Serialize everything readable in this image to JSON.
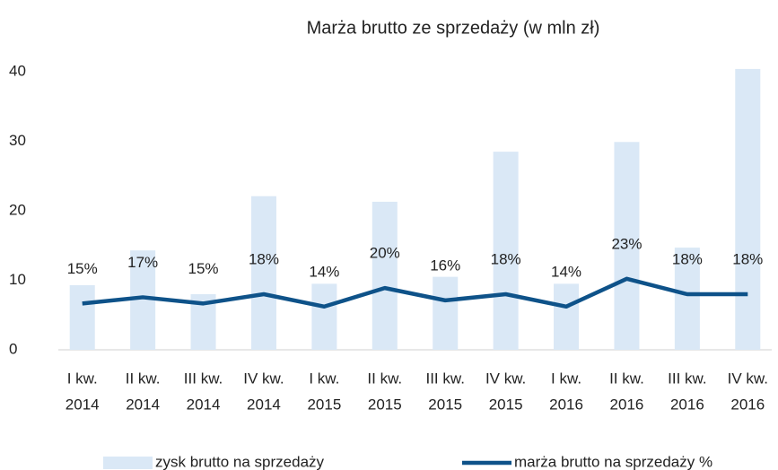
{
  "chart_data": {
    "type": "bar-line",
    "title": "Marża brutto ze sprzedaży (w mln zł)",
    "categories": [
      [
        "I kw.",
        "2014"
      ],
      [
        "II kw.",
        "2014"
      ],
      [
        "III kw.",
        "2014"
      ],
      [
        "IV kw.",
        "2014"
      ],
      [
        "I kw.",
        "2015"
      ],
      [
        "II kw.",
        "2015"
      ],
      [
        "III kw.",
        "2015"
      ],
      [
        "IV kw.",
        "2015"
      ],
      [
        "I kw.",
        "2016"
      ],
      [
        "II kw.",
        "2016"
      ],
      [
        "III kw.",
        "2016"
      ],
      [
        "IV kw.",
        "2016"
      ]
    ],
    "series": [
      {
        "name": "zysk brutto na sprzedaży",
        "type": "bar",
        "color": "#dae8f6",
        "values": [
          9.3,
          14.3,
          8.0,
          22.1,
          9.5,
          21.3,
          10.5,
          28.5,
          9.5,
          29.9,
          14.7,
          40.4
        ]
      },
      {
        "name": "marża brutto na sprzedaży %",
        "type": "line",
        "axis": "y2",
        "color": "#0e5289",
        "values": [
          15,
          17,
          15,
          18,
          14,
          20,
          16,
          18,
          14,
          23,
          18,
          18
        ],
        "value_labels": [
          "15%",
          "17%",
          "15%",
          "18%",
          "14%",
          "20%",
          "16%",
          "18%",
          "14%",
          "23%",
          "18%",
          "18%"
        ]
      }
    ],
    "ylim": [
      0,
      40
    ],
    "yticks": [
      0,
      10,
      20,
      30,
      40
    ],
    "y2lim": [
      0,
      90
    ],
    "grid": false
  }
}
